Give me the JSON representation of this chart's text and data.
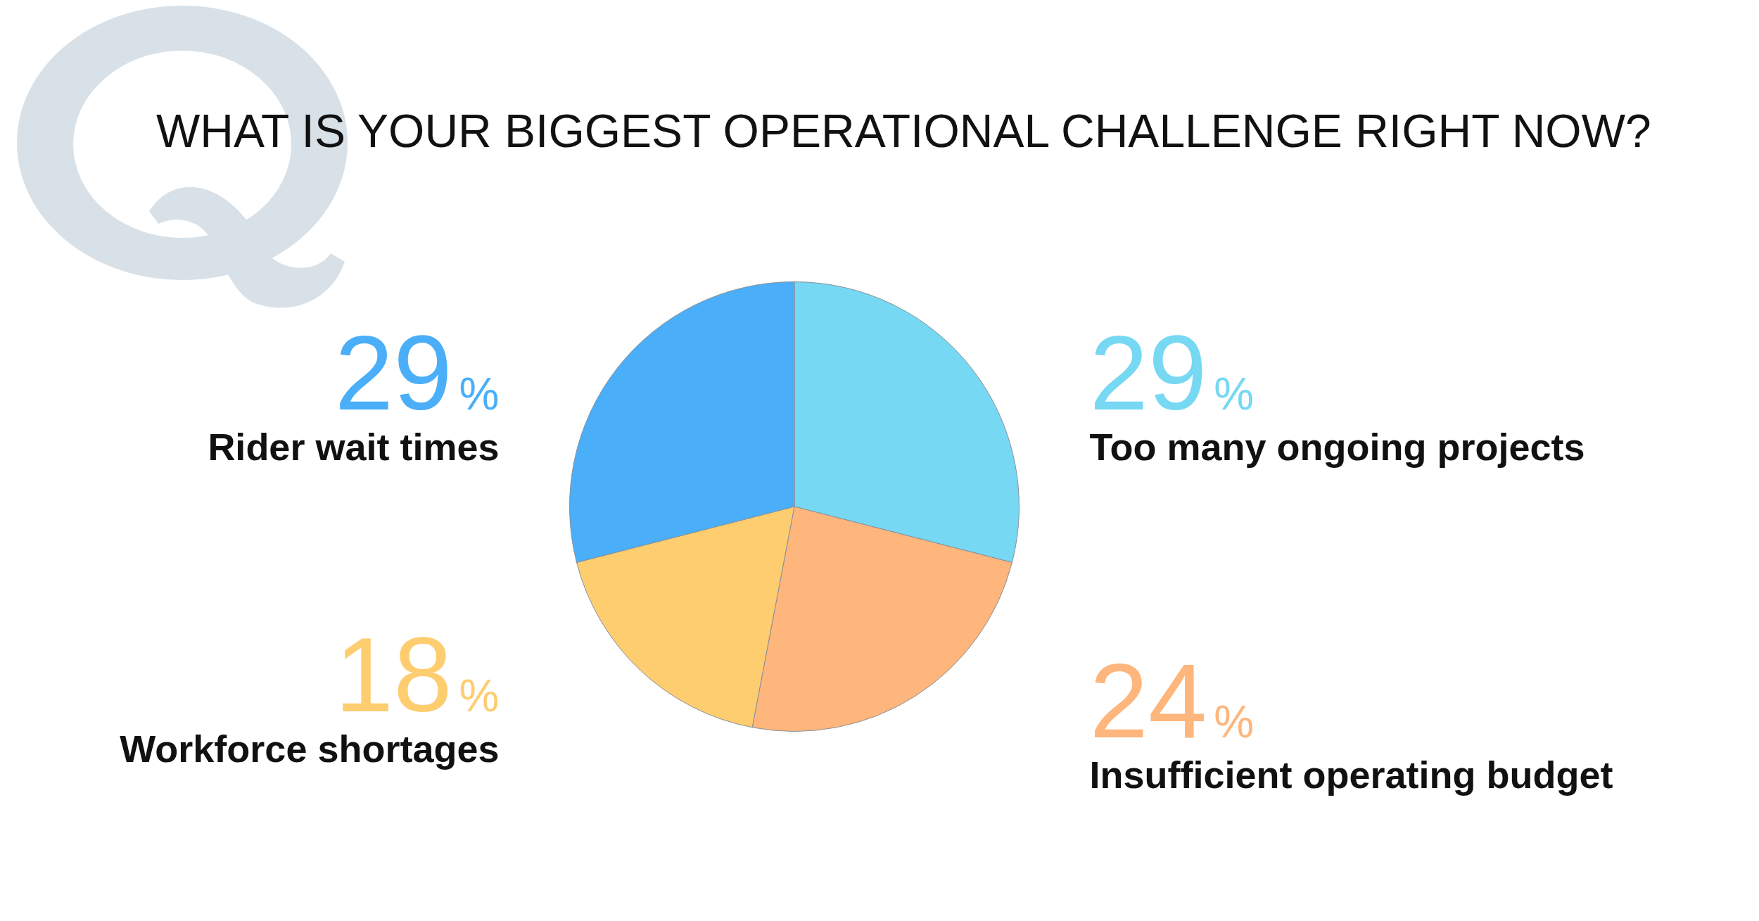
{
  "chart_data": {
    "type": "pie",
    "title": "WHAT IS YOUR BIGGEST OPERATIONAL CHALLENGE RIGHT NOW?",
    "categories": [
      "Too many ongoing projects",
      "Insufficient operating budget",
      "Workforce shortages",
      "Rider wait times"
    ],
    "values": [
      29,
      24,
      18,
      29
    ],
    "colors": [
      "#76d8f3",
      "#feb67c",
      "#fecd70",
      "#4aaef8"
    ],
    "value_labels": [
      "29%",
      "24%",
      "18%",
      "29%"
    ]
  }
}
